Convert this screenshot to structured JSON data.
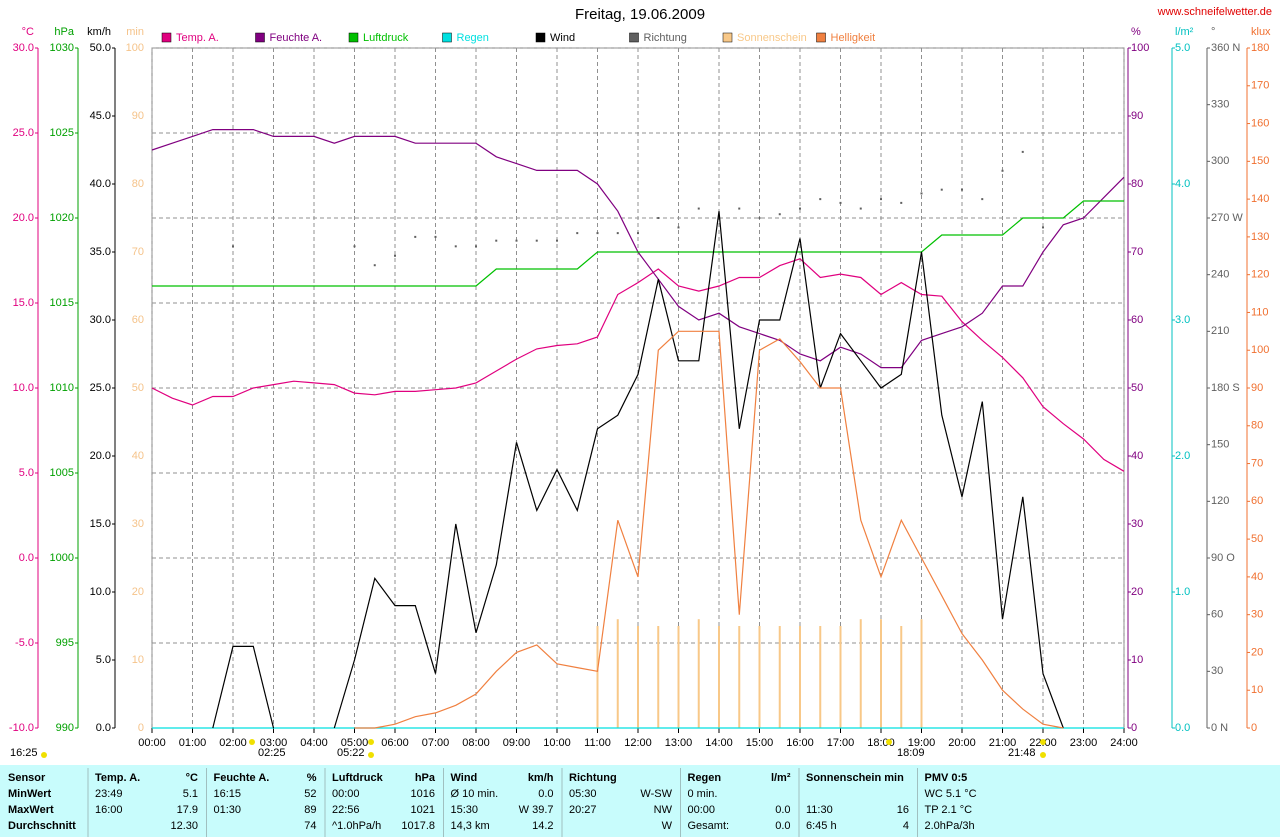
{
  "chart_data": {
    "type": "line",
    "title": "Freitag, 19.06.2009",
    "source": "www.schneifelwetter.de",
    "grid": true,
    "x": [
      0,
      0.5,
      1,
      1.5,
      2,
      2.5,
      3,
      3.5,
      4,
      4.5,
      5,
      5.5,
      6,
      6.5,
      7,
      7.5,
      8,
      8.5,
      9,
      9.5,
      10,
      10.5,
      11,
      11.5,
      12,
      12.5,
      13,
      13.5,
      14,
      14.5,
      15,
      15.5,
      16,
      16.5,
      17,
      17.5,
      18,
      18.5,
      19,
      19.5,
      20,
      20.5,
      21,
      21.5,
      22,
      22.5,
      23,
      23.5,
      24
    ],
    "xlim": [
      0,
      24
    ],
    "xticks": [
      {
        "value": 0,
        "label": "00:00"
      },
      {
        "value": 1,
        "label": "01:00"
      },
      {
        "value": 2,
        "label": "02:00"
      },
      {
        "value": 3,
        "label": "03:00"
      },
      {
        "value": 4,
        "label": "04:00"
      },
      {
        "value": 5,
        "label": "05:00"
      },
      {
        "value": 6,
        "label": "06:00"
      },
      {
        "value": 7,
        "label": "07:00"
      },
      {
        "value": 8,
        "label": "08:00"
      },
      {
        "value": 9,
        "label": "09:00"
      },
      {
        "value": 10,
        "label": "10:00"
      },
      {
        "value": 11,
        "label": "11:00"
      },
      {
        "value": 12,
        "label": "12:00"
      },
      {
        "value": 13,
        "label": "13:00"
      },
      {
        "value": 14,
        "label": "14:00"
      },
      {
        "value": 15,
        "label": "15:00"
      },
      {
        "value": 16,
        "label": "16:00"
      },
      {
        "value": 17,
        "label": "17:00"
      },
      {
        "value": 18,
        "label": "18:00"
      },
      {
        "value": 19,
        "label": "19:00"
      },
      {
        "value": 20,
        "label": "20:00"
      },
      {
        "value": 21,
        "label": "21:00"
      },
      {
        "value": 22,
        "label": "22:00"
      },
      {
        "value": 23,
        "label": "23:00"
      },
      {
        "value": 24,
        "label": "24:00"
      }
    ],
    "y_axes": [
      {
        "unit": "°C",
        "color": "#e0007f",
        "ylim": [
          -10,
          30
        ],
        "yticks": [
          {
            "value": -10,
            "label": "-10.0"
          },
          {
            "value": -5,
            "label": "-5.0"
          },
          {
            "value": 0,
            "label": "0.0"
          },
          {
            "value": 5,
            "label": "5.0"
          },
          {
            "value": 10,
            "label": "10.0"
          },
          {
            "value": 15,
            "label": "15.0"
          },
          {
            "value": 20,
            "label": "20.0"
          },
          {
            "value": 25,
            "label": "25.0"
          },
          {
            "value": 30,
            "label": "30.0"
          }
        ]
      },
      {
        "unit": "hPa",
        "color": "#00a000",
        "ylim": [
          990,
          1030
        ],
        "yticks": [
          990,
          995,
          1000,
          1005,
          1010,
          1015,
          1020,
          1025,
          1030
        ]
      },
      {
        "unit": "km/h",
        "color": "#000000",
        "ylim": [
          0,
          50
        ],
        "yticks": [
          {
            "value": 0,
            "label": "0.0"
          },
          {
            "value": 5,
            "label": "5.0"
          },
          {
            "value": 10,
            "label": "10.0"
          },
          {
            "value": 15,
            "label": "15.0"
          },
          {
            "value": 20,
            "label": "20.0"
          },
          {
            "value": 25,
            "label": "25.0"
          },
          {
            "value": 30,
            "label": "30.0"
          },
          {
            "value": 35,
            "label": "35.0"
          },
          {
            "value": 40,
            "label": "40.0"
          },
          {
            "value": 45,
            "label": "45.0"
          },
          {
            "value": 50,
            "label": "50.0"
          }
        ]
      },
      {
        "unit": "min",
        "color": "#f5c38a",
        "ylim": [
          0,
          100
        ],
        "yticks": [
          0,
          10,
          20,
          30,
          40,
          50,
          60,
          70,
          80,
          90,
          100
        ]
      },
      {
        "unit": "%",
        "color": "#800080",
        "ylim": [
          0,
          100
        ],
        "yticks": [
          0,
          10,
          20,
          30,
          40,
          50,
          60,
          70,
          80,
          90,
          100
        ]
      },
      {
        "unit": "l/m²",
        "color": "#00c0c0",
        "ylim": [
          0,
          5
        ],
        "yticks": [
          {
            "value": 0,
            "label": "0.0"
          },
          {
            "value": 1,
            "label": "1.0"
          },
          {
            "value": 2,
            "label": "2.0"
          },
          {
            "value": 3,
            "label": "3.0"
          },
          {
            "value": 4,
            "label": "4.0"
          },
          {
            "value": 5,
            "label": "5.0"
          }
        ]
      },
      {
        "unit": "°",
        "color": "#606060",
        "ylim": [
          0,
          360
        ],
        "yticks": [
          {
            "value": 0,
            "label": "0  N"
          },
          30,
          60,
          {
            "value": 90,
            "label": "90  O"
          },
          120,
          150,
          {
            "value": 180,
            "label": "180 S"
          },
          210,
          240,
          {
            "value": 270,
            "label": "270 W"
          },
          300,
          330,
          {
            "value": 360,
            "label": "360 N"
          }
        ]
      },
      {
        "unit": "klux",
        "color": "#f07030",
        "ylim": [
          0,
          180
        ],
        "yticks": [
          0,
          10,
          20,
          30,
          40,
          50,
          60,
          70,
          80,
          90,
          100,
          110,
          120,
          130,
          140,
          150,
          160,
          170,
          180
        ]
      }
    ],
    "series": [
      {
        "name": "Temp. A.",
        "color": "#e0007f",
        "axis": 0,
        "style": "line",
        "values": [
          10.0,
          9.4,
          9.0,
          9.5,
          9.5,
          10.0,
          10.2,
          10.4,
          10.3,
          10.2,
          9.7,
          9.6,
          9.8,
          9.8,
          9.9,
          10.0,
          10.3,
          11.0,
          11.7,
          12.3,
          12.5,
          12.6,
          13.0,
          15.5,
          16.2,
          17.0,
          16.0,
          15.7,
          16.0,
          16.5,
          16.5,
          17.2,
          17.6,
          16.5,
          16.7,
          16.5,
          15.5,
          16.2,
          15.5,
          15.4,
          13.9,
          12.8,
          11.8,
          10.6,
          8.9,
          7.9,
          7.0,
          5.8,
          5.1
        ]
      },
      {
        "name": "Feuchte A.",
        "color": "#800080",
        "axis": 4,
        "style": "line",
        "values": [
          85,
          86,
          87,
          88,
          88,
          88,
          87,
          87,
          87,
          86,
          87,
          87,
          87,
          86,
          86,
          86,
          86,
          84,
          83,
          82,
          82,
          82,
          80,
          76,
          70,
          66,
          62,
          60,
          61,
          59,
          58,
          57,
          55,
          54,
          56,
          55,
          53,
          53,
          57,
          58,
          59,
          61,
          65,
          65,
          70,
          74,
          75,
          78,
          81
        ]
      },
      {
        "name": "Luftdruck",
        "color": "#00c000",
        "axis": 1,
        "style": "line",
        "values": [
          1016,
          1016,
          1016,
          1016,
          1016,
          1016,
          1016,
          1016,
          1016,
          1016,
          1016,
          1016,
          1016,
          1016,
          1016,
          1016,
          1016,
          1017,
          1017,
          1017,
          1017,
          1017,
          1018,
          1018,
          1018,
          1018,
          1018,
          1018,
          1018,
          1018,
          1018,
          1018,
          1018,
          1018,
          1018,
          1018,
          1018,
          1018,
          1018,
          1019,
          1019,
          1019,
          1019,
          1020,
          1020,
          1020,
          1021,
          1021,
          1021
        ]
      },
      {
        "name": "Regen",
        "color": "#00e0e0",
        "axis": 5,
        "style": "line",
        "values": [
          0,
          0,
          0,
          0,
          0,
          0,
          0,
          0,
          0,
          0,
          0,
          0,
          0,
          0,
          0,
          0,
          0,
          0,
          0,
          0,
          0,
          0,
          0,
          0,
          0,
          0,
          0,
          0,
          0,
          0,
          0,
          0,
          0,
          0,
          0,
          0,
          0,
          0,
          0,
          0,
          0,
          0,
          0,
          0,
          0,
          0,
          0,
          0,
          0
        ]
      },
      {
        "name": "Wind",
        "color": "#000000",
        "axis": 2,
        "style": "line",
        "values": [
          null,
          null,
          null,
          0,
          6,
          6,
          0,
          null,
          null,
          0,
          5,
          11,
          9,
          9,
          4,
          15,
          7,
          12,
          21,
          16,
          19,
          16,
          22,
          23,
          26,
          33,
          27,
          27,
          38,
          22,
          30,
          30,
          36,
          25,
          29,
          27,
          25,
          26,
          35,
          23,
          17,
          24,
          8,
          17,
          4,
          0,
          null,
          null,
          null
        ]
      },
      {
        "name": "Richtung",
        "color": "#606060",
        "axis": 6,
        "style": "dots",
        "values": [
          null,
          null,
          null,
          null,
          255,
          null,
          null,
          null,
          null,
          null,
          255,
          245,
          250,
          260,
          260,
          255,
          255,
          258,
          258,
          258,
          258,
          262,
          262,
          262,
          262,
          270,
          265,
          275,
          270,
          275,
          270,
          272,
          275,
          280,
          278,
          275,
          280,
          278,
          283,
          285,
          285,
          280,
          295,
          305,
          265,
          null,
          null,
          null,
          null
        ]
      },
      {
        "name": "Sonnenschein",
        "color": "#f8c888",
        "axis": 3,
        "style": "bars",
        "values": [
          0,
          0,
          0,
          0,
          0,
          0,
          0,
          0,
          0,
          0,
          0,
          0,
          0,
          0,
          0,
          0,
          0,
          0,
          0,
          0,
          0,
          0,
          15,
          16,
          15,
          15,
          15,
          16,
          15,
          15,
          15,
          15,
          15,
          15,
          15,
          16,
          16,
          15,
          16,
          0,
          0,
          0,
          0,
          0,
          0,
          0,
          0,
          0,
          0
        ]
      },
      {
        "name": "Helligkeit",
        "color": "#f08040",
        "axis": 7,
        "style": "line",
        "values": [
          null,
          null,
          null,
          null,
          null,
          null,
          null,
          null,
          null,
          null,
          0,
          0,
          1,
          3,
          4,
          6,
          9,
          15,
          20,
          22,
          17,
          16,
          15,
          55,
          40,
          100,
          105,
          105,
          105,
          30,
          100,
          103,
          97,
          90,
          90,
          55,
          40,
          55,
          45,
          35,
          25,
          18,
          10,
          5,
          1,
          0,
          null,
          null,
          null
        ]
      }
    ],
    "annotations": [
      "16:25",
      "02:25",
      "05:22",
      "18:09",
      "21:48"
    ]
  },
  "table": {
    "row_labels_title": "Sensor",
    "row_labels": [
      "MinWert",
      "MaxWert",
      "Durchschnitt"
    ],
    "groups": [
      {
        "title": "Temp. A.",
        "unit": "°C",
        "cells": [
          [
            "23:49",
            "5.1"
          ],
          [
            "16:00",
            "17.9"
          ],
          [
            null,
            "12.30"
          ]
        ]
      },
      {
        "title": "Feuchte A.",
        "unit": "%",
        "cells": [
          [
            "16:15",
            "52"
          ],
          [
            "01:30",
            "89"
          ],
          [
            null,
            "74"
          ]
        ]
      },
      {
        "title": "Luftdruck",
        "unit": "hPa",
        "cells": [
          [
            "00:00",
            "1016"
          ],
          [
            "22:56",
            "1021"
          ],
          [
            "^1.0hPa/h",
            "1017.8"
          ]
        ]
      },
      {
        "title": "Wind",
        "unit": "km/h",
        "cells": [
          [
            "Ø 10 min.",
            "0.0"
          ],
          [
            "15:30",
            "W 39.7"
          ],
          [
            "14,3 km",
            "14.2"
          ]
        ]
      },
      {
        "title": "Richtung",
        "unit": null,
        "cells": [
          [
            "05:30",
            "W-SW"
          ],
          [
            "20:27",
            "NW"
          ],
          [
            null,
            "W"
          ]
        ]
      },
      {
        "title": "Regen",
        "unit": "l/m²",
        "cells": [
          [
            "0 min.",
            null
          ],
          [
            "00:00",
            "0.0"
          ],
          [
            "Gesamt:",
            "0.0"
          ]
        ]
      },
      {
        "title": "Sonnenschein min",
        "unit": null,
        "cells": [
          [
            null,
            null
          ],
          [
            "11:30",
            "16"
          ],
          [
            "6:45 h",
            "4"
          ]
        ]
      },
      {
        "title": "PMV 0:5",
        "unit": null,
        "cells": [
          [
            "WC 5.1 °C",
            null
          ],
          [
            "TP 2.1 °C",
            null
          ],
          [
            "2.0hPa/3h",
            null
          ]
        ]
      }
    ]
  }
}
